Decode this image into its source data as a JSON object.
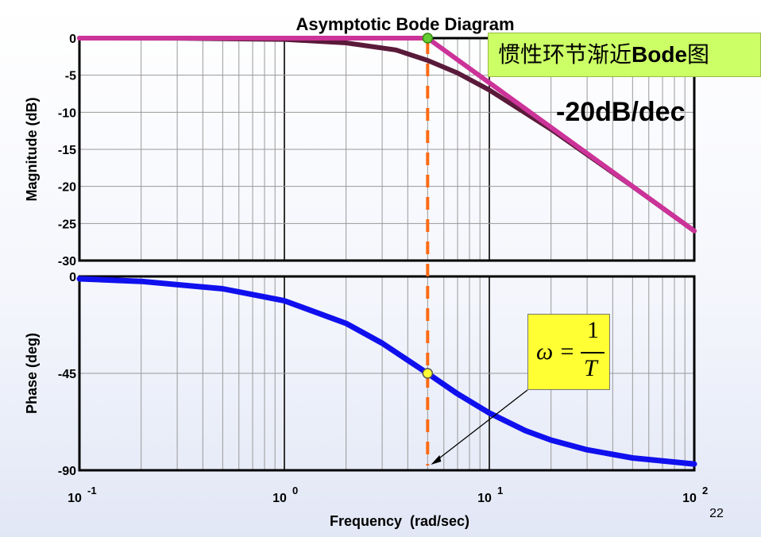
{
  "chart_data": [
    {
      "type": "line",
      "title": "Asymptotic Bode Diagram",
      "ylabel": "Magnitude (dB)",
      "xscale": "log",
      "xlim": [
        0.1,
        100
      ],
      "ylim": [
        -30,
        0
      ],
      "yticks": [
        "0",
        "-5",
        "-10",
        "-15",
        "-20",
        "-25",
        "-30"
      ],
      "grid": true,
      "series": [
        {
          "kind": "exact",
          "color": "#5a1a3a",
          "x": [
            0.1,
            0.3,
            1,
            2,
            3.5,
            5,
            7,
            10,
            20,
            50,
            100
          ],
          "y": [
            -0.002,
            -0.016,
            -0.17,
            -0.64,
            -1.6,
            -3.0,
            -4.7,
            -7.0,
            -12.3,
            -20.0,
            -26.0
          ]
        },
        {
          "kind": "asymptote",
          "color": "#cc3399",
          "x": [
            0.1,
            5,
            100
          ],
          "y": [
            0,
            0,
            -26.0
          ]
        }
      ],
      "annotations": {
        "corner_marker_color": "#66cc33",
        "slope_label": "-20dB/dec",
        "chinese_label_prefix": "惯性环节渐近",
        "chinese_label_bold": "Bode",
        "chinese_label_suffix": "图",
        "chinese_label_bg": "#ccff66"
      }
    },
    {
      "type": "line",
      "ylabel": "Phase (deg)",
      "xlabel": "Frequency  (rad/sec)",
      "xscale": "log",
      "xlim": [
        0.1,
        100
      ],
      "ylim": [
        -90,
        0
      ],
      "yticks": [
        "0",
        "-45",
        "-90"
      ],
      "grid": true,
      "series": [
        {
          "kind": "phase",
          "color": "#1010ee",
          "x": [
            0.1,
            0.2,
            0.5,
            1,
            2,
            3,
            5,
            7,
            10,
            15,
            20,
            30,
            50,
            100
          ],
          "y": [
            -1.1,
            -2.3,
            -5.7,
            -11.3,
            -21.8,
            -31.0,
            -45.0,
            -54.5,
            -63.4,
            -71.6,
            -76.0,
            -80.5,
            -84.3,
            -87.1
          ]
        }
      ],
      "annotations": {
        "formula_lhs": "ω =",
        "formula_num": "1",
        "formula_den": "T",
        "formula_bg": "#ffff33",
        "corner_marker_color": "#ffff33"
      }
    }
  ],
  "corner_frequency": 5,
  "corner_line_color": "#ff6a13",
  "xticks": [
    {
      "base": "10",
      "exp": "-1"
    },
    {
      "base": "10",
      "exp": "0"
    },
    {
      "base": "10",
      "exp": "1"
    },
    {
      "base": "10",
      "exp": "2"
    }
  ],
  "page_number": "22"
}
